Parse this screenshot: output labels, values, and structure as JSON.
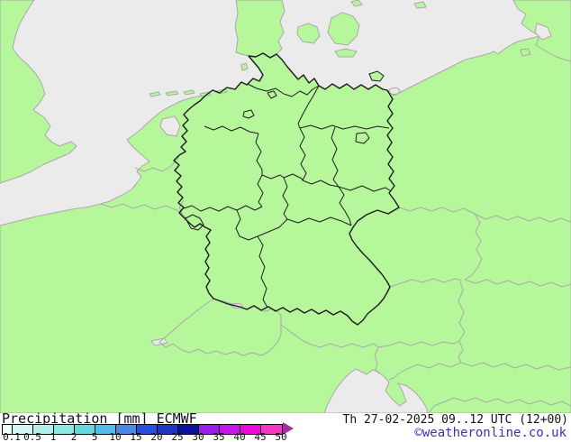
{
  "legend_bar": {
    "product_label": "Precipitation",
    "unit_label": "[mm]",
    "model_label": "ECMWF",
    "datetime_label": "Th 27-02-2025 09..12 UTC (12+00)",
    "credit_label": "©weatheronline.co.uk",
    "credit_color": "#3333bb",
    "scale": {
      "tick_labels": [
        "0.1",
        "0.5",
        "1",
        "2",
        "5",
        "10",
        "15",
        "20",
        "25",
        "30",
        "35",
        "40",
        "45",
        "50"
      ],
      "segment_colors": [
        "#eefcfc",
        "#d2f7f0",
        "#b2f1ea",
        "#8ceae4",
        "#63d6e0",
        "#52bce8",
        "#4a8ae4",
        "#2950dc",
        "#1c35c4",
        "#0c119b",
        "#9c1ce9",
        "#c615e6",
        "#ed08da",
        "#f338c4"
      ],
      "overflow_arrow_color": "#a42f9f"
    }
  },
  "map": {
    "land_color": "#b7f79c",
    "sea_color": "#ebebeb",
    "country_border_color": "#a9a9a9",
    "germany_border_color": "#1c1c1c"
  }
}
